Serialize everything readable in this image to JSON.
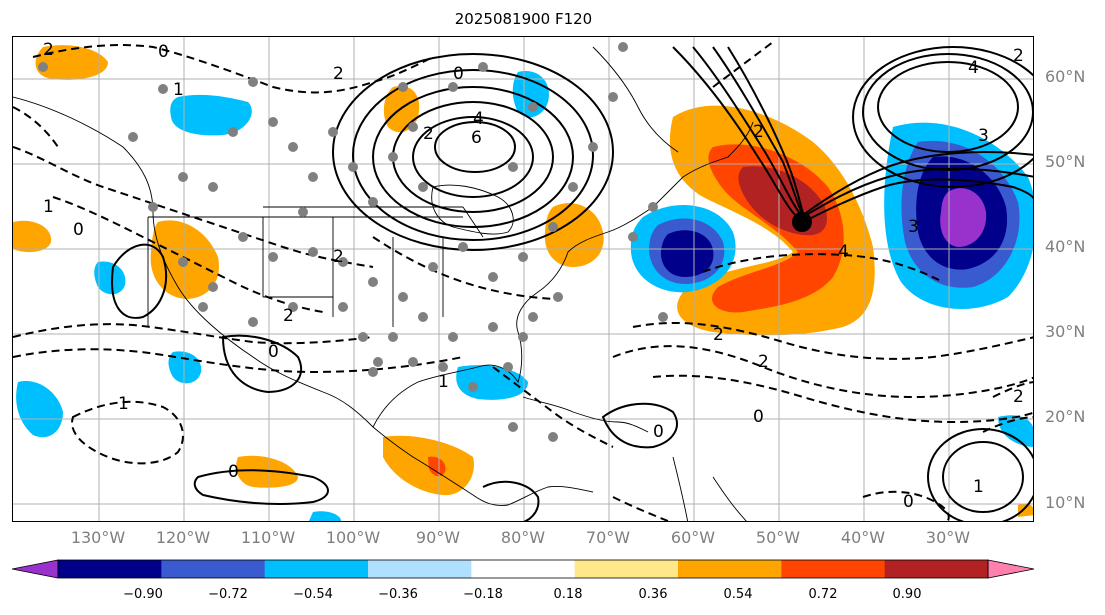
{
  "title": "2025081900 F120",
  "lat_labels": [
    "60°N",
    "50°N",
    "40°N",
    "30°N",
    "20°N",
    "10°N"
  ],
  "lon_labels": [
    "130°W",
    "120°W",
    "110°W",
    "100°W",
    "90°W",
    "80°W",
    "70°W",
    "60°W",
    "50°W",
    "40°W",
    "30°W"
  ],
  "colorbar": {
    "ticks": [
      "−0.90",
      "−0.72",
      "−0.54",
      "−0.36",
      "−0.18",
      "0.18",
      "0.36",
      "0.54",
      "0.72",
      "0.90"
    ],
    "colors": [
      "#9932cc",
      "#00008b",
      "#3a5bd0",
      "#00bfff",
      "#b0e0ff",
      "#ffffff",
      "#ffe88a",
      "#ffa500",
      "#ff4500",
      "#b22222",
      "#ff7fae"
    ]
  },
  "contour_labels": [
    "2",
    "0",
    "1",
    "2",
    "4",
    "6",
    "2",
    "4",
    "3",
    "2",
    "0",
    "2",
    "1",
    "0",
    "0",
    "1",
    "2",
    "2",
    "0",
    "2",
    "3",
    "4",
    "1",
    "0",
    "2",
    "2",
    "0",
    "1",
    "0"
  ]
}
